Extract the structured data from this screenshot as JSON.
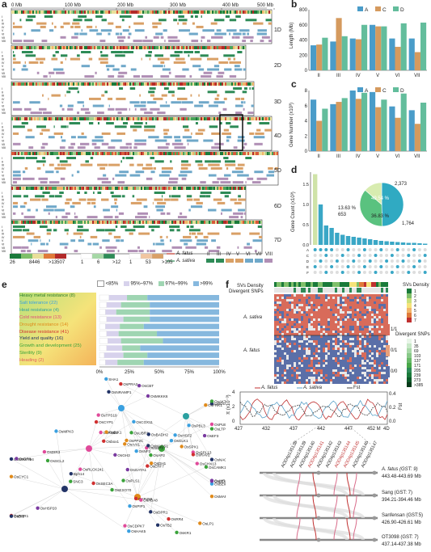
{
  "panels": [
    "a",
    "b",
    "c",
    "d",
    "e",
    "f"
  ],
  "panel_a": {
    "axis_ticks": [
      "0 Mb",
      "100 Mb",
      "200 Mb",
      "300 Mb",
      "400 Mb",
      "500 Mb"
    ],
    "chromosomes": [
      "1D",
      "2D",
      "3D",
      "4D",
      "5D",
      "6D",
      "7D"
    ],
    "track_labels": [
      "I",
      "II",
      "III",
      "IV",
      "V",
      "VI",
      "VII",
      "VIII"
    ],
    "legend": {
      "scale1": [
        "26",
        "8446",
        ">13507"
      ],
      "scale2": [
        "1",
        "6",
        ">12"
      ],
      "scale3": [
        "1",
        "53",
        ">105"
      ],
      "roman": [
        "II",
        "III",
        "IV",
        "V",
        "VI",
        "VII",
        "VIII"
      ],
      "species": [
        "A. fatus",
        "A. sativa"
      ]
    },
    "colors": {
      "green": "#2e8b57",
      "orange": "#d9a066",
      "blue": "#6fa8c9",
      "purple": "#b08fb5",
      "grey": "#bdbdbd",
      "red": "#c0392b"
    }
  },
  "panel_b": {
    "chart_data": {
      "type": "bar",
      "ylabel": "Length (Mb)",
      "categories": [
        "II",
        "III",
        "IV",
        "V",
        "VI",
        "VII"
      ],
      "ylim": [
        0,
        800
      ],
      "yticks": [
        "0",
        "200",
        "400",
        "600",
        "800"
      ],
      "series": [
        {
          "name": "A",
          "values": [
            330,
            380,
            420,
            600,
            420,
            420
          ],
          "color": "#4a9cc9"
        },
        {
          "name": "C",
          "values": [
            340,
            690,
            410,
            580,
            310,
            240
          ],
          "color": "#d59a5e"
        },
        {
          "name": "D",
          "values": [
            430,
            450,
            600,
            580,
            620,
            630
          ],
          "color": "#63bd9c"
        }
      ],
      "legend": [
        "A",
        "C",
        "D"
      ]
    }
  },
  "panel_c": {
    "chart_data": {
      "type": "bar",
      "ylabel": "Gene Number (x10³)",
      "categories": [
        "II",
        "III",
        "IV",
        "V",
        "VI",
        "VII"
      ],
      "ylim": [
        0,
        8
      ],
      "yticks": [
        "0",
        "2",
        "4",
        "6",
        "8"
      ],
      "series": [
        {
          "name": "A",
          "values": [
            6.8,
            6.2,
            8.0,
            7.8,
            5.9,
            5.4
          ],
          "color": "#4a9cc9"
        },
        {
          "name": "C",
          "values": [
            4.0,
            6.5,
            6.9,
            5.8,
            4.4,
            3.6
          ],
          "color": "#d59a5e"
        },
        {
          "name": "D",
          "values": [
            5.6,
            7.0,
            7.7,
            6.8,
            7.6,
            6.4
          ],
          "color": "#63bd9c"
        }
      ],
      "legend": [
        "A",
        "C",
        "D"
      ]
    }
  },
  "panel_d": {
    "ylabel": "Gene Count (x10³)",
    "yticks": [
      "0.0",
      "0.5",
      "1.0",
      "1.5"
    ],
    "bars": [
      1.75,
      1.0,
      0.48,
      0.42,
      0.3,
      0.25,
      0.22,
      0.2,
      0.18,
      0.16,
      0.14,
      0.12,
      0.1,
      0.09,
      0.08,
      0.07,
      0.06,
      0.05,
      0.05,
      0.04,
      0.03
    ],
    "set_labels": [
      "A",
      "C",
      "D",
      "E",
      "F"
    ],
    "pie": {
      "chart_data": {
        "type": "pie",
        "slices": [
          {
            "pct": "49.54 %",
            "count": "2,373",
            "value": 49.54,
            "color": "#30aac2"
          },
          {
            "pct": "36.83 %",
            "count": "1,764",
            "value": 36.83,
            "color": "#5ac27f"
          },
          {
            "pct": "13.63 %",
            "count": "653",
            "value": 13.63,
            "color": "#d8ecb0"
          }
        ]
      }
    }
  },
  "panel_e": {
    "legend": [
      "<85%",
      "95%~97%",
      "97%~99%",
      ">99%"
    ],
    "legend_colors": [
      "#ffffff",
      "#d7d2ec",
      "#9fd5b2",
      "#86b8de"
    ],
    "categories": [
      {
        "label": "Heavy metal resistance (8)",
        "color": "#2a7d2a"
      },
      {
        "label": "Salt tolerance (22)",
        "color": "#3a9fe0"
      },
      {
        "label": "Heat resistance (4)",
        "color": "#2ba0a0"
      },
      {
        "label": "Cold resistance (13)",
        "color": "#e04a7a"
      },
      {
        "label": "Drought resistance (14)",
        "color": "#e08a1a"
      },
      {
        "label": "Disease resistance (41)",
        "color": "#d03030"
      },
      {
        "label": "Yield and quality (16)",
        "color": "#223366"
      },
      {
        "label": "Growth and development (25)",
        "color": "#3aa33a"
      },
      {
        "label": "Sterility (9)",
        "color": "#3aa33a"
      },
      {
        "label": "Heading (2)",
        "color": "#e06060"
      }
    ],
    "xticks": [
      "0%",
      "25%",
      "50%",
      "75%",
      "100%"
    ],
    "network_nodes": [
      "SHA1",
      "OsPUB1",
      "OsUBR1",
      "OsWRKY94",
      "OsLP1",
      "OsPRA2",
      "OsMKKK6",
      "OsCOX11",
      "OsPUB12",
      "OsEXO70",
      "Bph14",
      "OsFRK1",
      "OsERF7",
      "OsDR8",
      "OsPBL3",
      "OsRLCK241",
      "OsCAMK1",
      "OsNAC5",
      "OsPP2C",
      "OsSEC3A",
      "OsWR1",
      "OsMPK3",
      "OsSBP3",
      "OsLTP1",
      "OsNRAMP1",
      "OsBIK1",
      "CYP450",
      "OsHSP20",
      "OsGLK1",
      "OsSPL13",
      "OsAP2",
      "OsMADS1",
      "OsMAPK4",
      "OsRBR1",
      "OsGATA1",
      "OsNF3",
      "OsTPS19",
      "SNC3",
      "OsDPR1",
      "OsCYC1",
      "OsRR4",
      "OsEF3",
      "OsHSF2",
      "OsDIR3",
      "OsPLS1",
      "OsDI3",
      "OsAAI1",
      "OsRAV2",
      "OsCBT",
      "OsPIP1",
      "OsCHX13",
      "OsSCL2",
      "OsTB2",
      "OsSPX1",
      "Osbox1",
      "OsGH3",
      "OsBZIP71",
      "OsABA8",
      "OsKR1",
      "OsIDD2",
      "OsDH1",
      "OsCYP1",
      "OsLEA1",
      "OsHAK5",
      "OsCDPK7",
      "OsAKT1",
      "OsBADH2"
    ]
  },
  "panel_f": {
    "track_labels": [
      "SVs Density",
      "Divergent SNPs"
    ],
    "row_labels": [
      "A. sativa",
      "A. fatus"
    ],
    "legend_sv": {
      "title": "SVs Density",
      "values": [
        "1",
        "2",
        "3",
        "4",
        "5",
        "6",
        "7"
      ]
    },
    "legend_snp": {
      "title": "Divergent SNPs",
      "values": [
        "1",
        "35",
        "69",
        "103",
        "137",
        "171",
        "205",
        "239",
        "273",
        ">385"
      ]
    },
    "genotype_labels": [
      "1/1",
      "0/1",
      "0/0"
    ],
    "pi": {
      "ylabel_left": "π (x10⁻³)",
      "ylabel_right": "Fst",
      "legend": [
        "A. fatus",
        "A. sativa",
        "Fst"
      ],
      "yticks_left": [
        "0",
        "2",
        "4"
      ],
      "yticks_right": [
        "0.0",
        "0.2",
        "0.4"
      ],
      "xticks": [
        "427",
        "432",
        "437",
        "442",
        "447",
        "452 M",
        "4D"
      ]
    },
    "gene_labels": [
      "AOD4p135138",
      "AOD4p135139",
      "AOD4p135140",
      "AOD4p135141",
      "AOD4p135142",
      "AOD4p135143",
      "AOD4p135144",
      "AOD4p135145",
      "AOD4p135146",
      "AOD4p135147"
    ],
    "genomes": [
      {
        "name": "A. fatus (GST: 9)",
        "range": "443.48-443.69 Mb"
      },
      {
        "name": "Sang (GST: 7)",
        "range": "394.21-394.46 Mb"
      },
      {
        "name": "Sanfensan (GST:5)",
        "range": "426.90-426.61 Mb"
      },
      {
        "name": "OT3098 (GST: 7)",
        "range": "437.14-437.38 Mb"
      }
    ]
  }
}
